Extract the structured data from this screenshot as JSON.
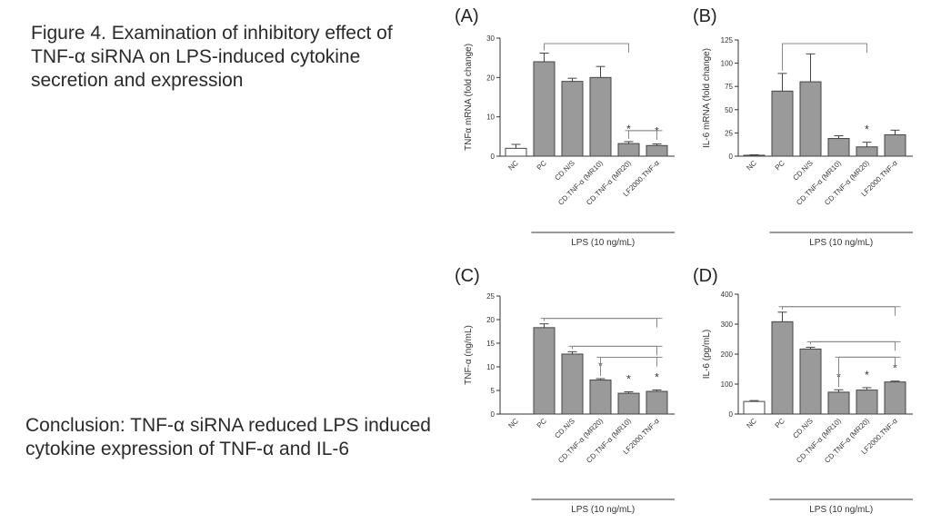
{
  "caption": "Figure 4. Examination of inhibitory effect of TNF-α siRNA on LPS-induced cytokine secretion and expression",
  "conclusion": "Conclusion: TNF-α siRNA reduced LPS induced cytokine expression of TNF-α and IL-6",
  "colors": {
    "bar_gray": "#9a9a9a",
    "bar_white": "#ffffff",
    "axis": "#333333",
    "bracket": "#888888"
  },
  "chart_data": [
    {
      "type": "bar",
      "panel_label": "(A)",
      "ylabel": "TNFα mRNA (fold change)",
      "ylim": [
        0,
        30
      ],
      "yticks": [
        "0",
        "10",
        "20",
        "30"
      ],
      "categories": [
        "NC",
        "PC",
        "CD.N/S",
        "CD.TNF-α (MR10)",
        "CD.TNF-α (MR20)",
        "LF2000.TNF-α"
      ],
      "values": [
        2,
        24,
        19,
        20,
        3.2,
        2.7
      ],
      "errors": [
        1,
        2.2,
        0.8,
        2.8,
        0.5,
        0.4
      ],
      "significance": [
        "",
        "",
        "",
        "",
        "*",
        "*"
      ],
      "group_label": "LPS (10 ng/mL)"
    },
    {
      "type": "bar",
      "panel_label": "(B)",
      "ylabel": "IL-6 mRNA (fold change)",
      "ylim": [
        0,
        125
      ],
      "yticks": [
        "0",
        "25",
        "50",
        "75",
        "100",
        "125"
      ],
      "categories": [
        "NC",
        "PC",
        "CD.N/S",
        "CD.TNF-α (MR10)",
        "CD.TNF-α (MR20)",
        "LF2000.TNF-α"
      ],
      "values": [
        1,
        70,
        80,
        19,
        10,
        23
      ],
      "errors": [
        0.5,
        19,
        30,
        3,
        5,
        5
      ],
      "significance": [
        "",
        "",
        "",
        "",
        "*",
        ""
      ],
      "group_label": "LPS (10 ng/mL)"
    },
    {
      "type": "bar",
      "panel_label": "(C)",
      "ylabel": "TNF-α (ng/mL)",
      "ylim": [
        0,
        25
      ],
      "yticks": [
        "0",
        "5",
        "10",
        "15",
        "20",
        "25"
      ],
      "categories": [
        "NC",
        "PC",
        "CD.N/S",
        "CD.TNF-α (MR20)",
        "CD.TNF-α (MR10)",
        "LF2000.TNF-α"
      ],
      "values": [
        0,
        18.3,
        12.7,
        7.2,
        4.4,
        4.8
      ],
      "errors": [
        0,
        0.8,
        0.5,
        0.3,
        0.3,
        0.3
      ],
      "significance": [
        "",
        "",
        "",
        "*",
        "*",
        "*"
      ],
      "group_label": "LPS (10 ng/mL)"
    },
    {
      "type": "bar",
      "panel_label": "(D)",
      "ylabel": "IL-6 (pg/mL)",
      "ylim": [
        0,
        400
      ],
      "yticks": [
        "0",
        "100",
        "200",
        "300",
        "400"
      ],
      "categories": [
        "NC",
        "PC",
        "CD.N/S",
        "CD.TNF-α (MR10)",
        "CD.TNF-α (MR20)",
        "LF2000.TNF-α"
      ],
      "values": [
        42,
        308,
        217,
        73,
        80,
        107
      ],
      "errors": [
        3,
        32,
        6,
        8,
        8,
        3
      ],
      "significance": [
        "",
        "",
        "",
        "*",
        "*",
        "*"
      ],
      "group_label": "LPS (10 ng/mL)"
    }
  ]
}
